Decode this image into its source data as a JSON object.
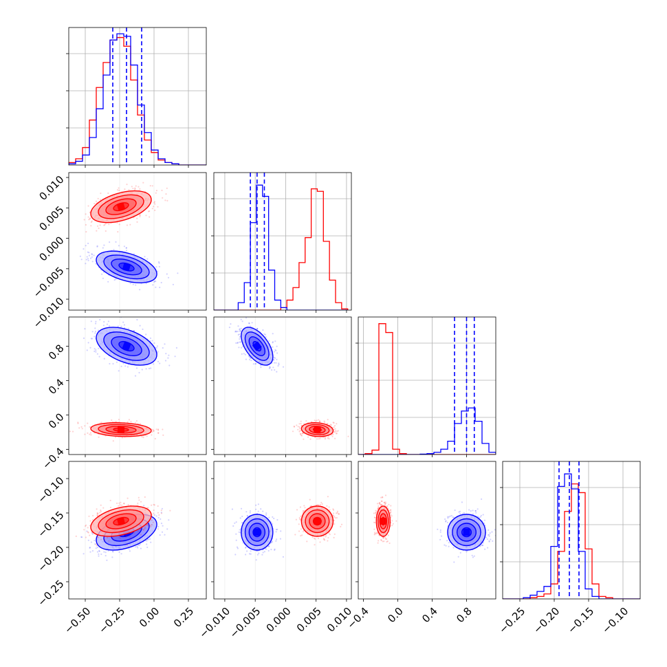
{
  "chart_data": {
    "type": "corner",
    "grid": true,
    "series": [
      {
        "color": "#0000ff"
      },
      {
        "color": "#ff0000"
      }
    ],
    "params": [
      {
        "range": [
          -0.62,
          0.38
        ],
        "ticks": [
          "−0.50",
          "−0.25",
          "0.00",
          "0.25"
        ],
        "tick_values": [
          -0.5,
          -0.25,
          0.0,
          0.25
        ]
      },
      {
        "range": [
          -0.0118,
          0.0108
        ],
        "ticks": [
          "−0.010",
          "−0.005",
          "0.000",
          "0.005",
          "0.010"
        ],
        "tick_values": [
          -0.01,
          -0.005,
          0.0,
          0.005,
          0.01
        ]
      },
      {
        "range": [
          -0.46,
          1.14
        ],
        "ticks": [
          "−0.4",
          "0.0",
          "0.4",
          "0.8"
        ],
        "tick_values": [
          -0.4,
          0.0,
          0.4,
          0.8
        ]
      },
      {
        "range": [
          -0.275,
          -0.075
        ],
        "ticks": [
          "−0.25",
          "−0.20",
          "−0.15",
          "−0.10"
        ],
        "tick_values": [
          -0.25,
          -0.2,
          -0.15,
          -0.1
        ]
      }
    ],
    "blue": {
      "means": [
        -0.2,
        -0.0047,
        0.8,
        -0.178
      ],
      "sds": [
        0.11,
        0.0013,
        0.11,
        0.013
      ],
      "quantiles": [
        [
          -0.3,
          -0.2,
          -0.09
        ],
        [
          -0.0058,
          -0.0047,
          -0.0035
        ],
        [
          0.66,
          0.8,
          0.89
        ],
        [
          -0.193,
          -0.178,
          -0.164
        ]
      ]
    },
    "red": {
      "means": [
        -0.24,
        0.0052,
        -0.17,
        -0.162
      ],
      "sds": [
        0.11,
        0.0013,
        0.04,
        0.011
      ]
    },
    "histograms": [
      {
        "edges": [
          -0.62,
          -0.57,
          -0.52,
          -0.47,
          -0.42,
          -0.37,
          -0.32,
          -0.27,
          -0.22,
          -0.17,
          -0.12,
          -0.07,
          -0.02,
          0.03,
          0.08,
          0.13,
          0.18,
          0.23,
          0.28,
          0.33,
          0.38
        ],
        "blue": [
          1,
          3,
          8,
          22,
          45,
          72,
          100,
          105,
          103,
          80,
          48,
          26,
          12,
          5,
          2,
          1,
          0,
          0,
          0,
          0
        ],
        "red": [
          2,
          5,
          14,
          36,
          62,
          82,
          100,
          102,
          95,
          68,
          40,
          20,
          10,
          4,
          2,
          1,
          0,
          0,
          0,
          0
        ],
        "ylim": [
          0,
          110
        ]
      },
      {
        "edges": [
          -0.0118,
          -0.0108,
          -0.0098,
          -0.0088,
          -0.0078,
          -0.0068,
          -0.0058,
          -0.0048,
          -0.0038,
          -0.0028,
          -0.0018,
          -0.0008,
          0.0002,
          0.0012,
          0.0022,
          0.0032,
          0.0042,
          0.0052,
          0.0062,
          0.0072,
          0.0082,
          0.0092,
          0.0102
        ],
        "blue": [
          0,
          0,
          0,
          0,
          6,
          22,
          70,
          100,
          91,
          32,
          8,
          2,
          0,
          0,
          0,
          0,
          0,
          0,
          0,
          0,
          0,
          0
        ],
        "red": [
          0,
          0,
          0,
          0,
          0,
          0,
          0,
          0,
          0,
          0,
          0,
          2,
          8,
          18,
          38,
          58,
          97,
          95,
          55,
          24,
          6,
          1
        ],
        "ylim": [
          0,
          110
        ]
      },
      {
        "edges": [
          -0.46,
          -0.38,
          -0.3,
          -0.22,
          -0.14,
          -0.06,
          0.02,
          0.1,
          0.18,
          0.26,
          0.34,
          0.42,
          0.5,
          0.58,
          0.66,
          0.74,
          0.82,
          0.9,
          0.98,
          1.06,
          1.14
        ],
        "blue": [
          0,
          0,
          0,
          0,
          0,
          0,
          0,
          0,
          0,
          1,
          2,
          5,
          12,
          30,
          70,
          98,
          105,
          75,
          25,
          5
        ],
        "red": [
          0,
          2,
          10,
          295,
          275,
          12,
          2,
          0,
          0,
          0,
          0,
          0,
          0,
          0,
          0,
          0,
          0,
          0,
          0,
          0
        ],
        "ylim": [
          0,
          310
        ]
      },
      {
        "edges": [
          -0.275,
          -0.265,
          -0.255,
          -0.245,
          -0.235,
          -0.225,
          -0.215,
          -0.205,
          -0.195,
          -0.185,
          -0.175,
          -0.165,
          -0.155,
          -0.145,
          -0.135,
          -0.125,
          -0.115,
          -0.105,
          -0.095,
          -0.085,
          -0.075
        ],
        "blue": [
          0,
          0,
          0,
          1,
          3,
          6,
          10,
          42,
          90,
          100,
          88,
          38,
          8,
          2,
          0,
          0,
          0,
          0,
          0,
          0
        ],
        "red": [
          0,
          0,
          0,
          0,
          1,
          2,
          4,
          12,
          38,
          70,
          92,
          85,
          40,
          12,
          2,
          1,
          0,
          0,
          0,
          0
        ],
        "ylim": [
          0,
          110
        ]
      }
    ]
  }
}
